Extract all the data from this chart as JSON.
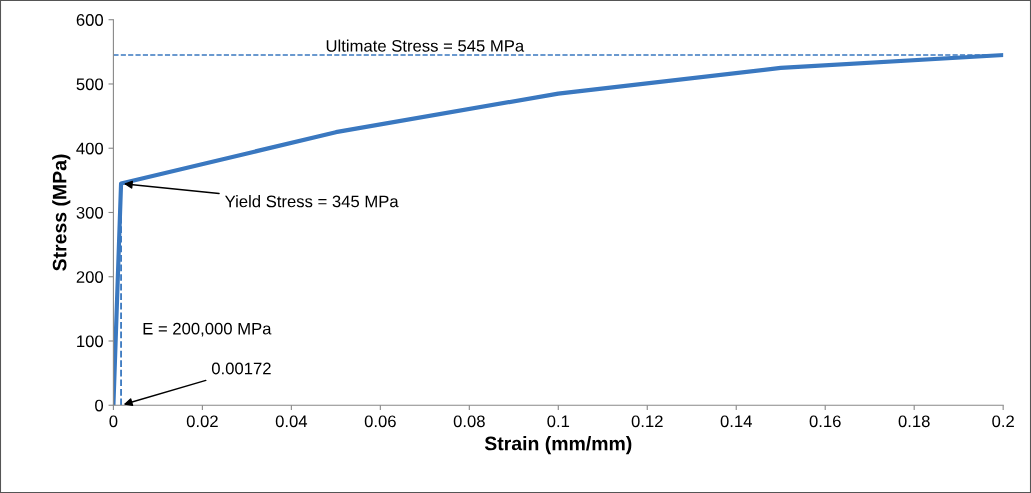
{
  "chart_data": {
    "type": "line",
    "xlabel": "Strain (mm/mm)",
    "ylabel": "Stress (MPa)",
    "series": [
      {
        "color": "#3a78c0",
        "x": [
          0,
          0.00172,
          0.05,
          0.1,
          0.15,
          0.2
        ],
        "values": [
          0,
          345,
          425,
          485,
          525,
          545
        ]
      },
      {
        "color": "#3a78c0",
        "x": [
          0.00172,
          0.00172
        ],
        "values": [
          0,
          345
        ],
        "line_style": "dashed"
      }
    ],
    "xlim": [
      0,
      0.2
    ],
    "xticks": [
      0,
      0.02,
      0.04,
      0.06,
      0.08,
      0.1,
      0.12,
      0.14,
      0.16,
      0.18,
      0.2
    ],
    "ylim": [
      0,
      600
    ],
    "yticks": [
      0,
      100,
      200,
      300,
      400,
      500,
      600
    ],
    "ref_lines": [
      {
        "axis": "y",
        "value": 545,
        "label": "Ultimate Stress = 545 MPa",
        "color": "#3a78c0",
        "line_style": "dashed"
      }
    ],
    "annotations": [
      {
        "text": "Yield Stress = 345 MPa",
        "x": 0.00172,
        "y": 345
      },
      {
        "text": "0.00172",
        "x": 0.00172,
        "y": 0
      },
      "E = 200,000 MPa"
    ],
    "grid": false,
    "legend": false,
    "marker": "none",
    "line_style": "solid"
  }
}
